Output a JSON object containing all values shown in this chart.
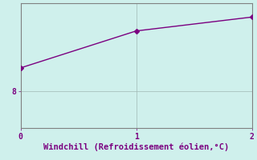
{
  "x": [
    0,
    1,
    2
  ],
  "y": [
    8.5,
    9.3,
    9.6
  ],
  "line_color": "#7b0080",
  "marker": "D",
  "marker_size": 3,
  "background_color": "#cff0ec",
  "grid_color": "#a0b8b5",
  "xlabel": "Windchill (Refroidissement éolien,°C)",
  "xlabel_color": "#7b0080",
  "xlabel_fontsize": 7.5,
  "tick_color": "#7b0080",
  "tick_fontsize": 7,
  "xlim": [
    0,
    2
  ],
  "ylim": [
    7.2,
    9.9
  ],
  "yticks": [
    8
  ],
  "xticks": [
    0,
    1,
    2
  ],
  "line_width": 1.0,
  "spine_color": "#808080"
}
